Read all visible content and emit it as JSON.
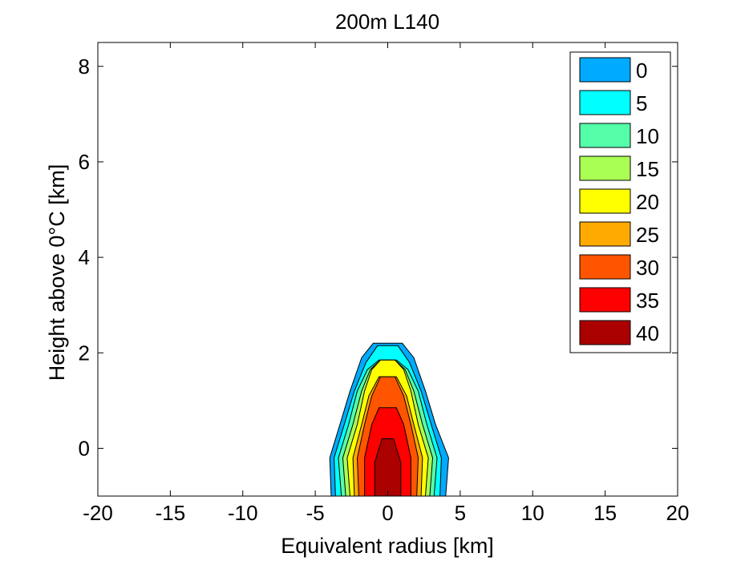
{
  "chart_data": {
    "type": "contour",
    "title": "200m L140",
    "xlabel": "Equivalent radius [km]",
    "ylabel": "Height above 0°C [km]",
    "xlim": [
      -20,
      20
    ],
    "ylim": [
      -1,
      8.5
    ],
    "xticks": [
      -20,
      -15,
      -10,
      -5,
      0,
      5,
      10,
      15,
      20
    ],
    "xtick_labels": [
      "-20",
      "-15",
      "-10",
      "-5",
      "0",
      "5",
      "10",
      "15",
      "20"
    ],
    "yticks": [
      0,
      2,
      4,
      6,
      8
    ],
    "ytick_labels": [
      "0",
      "2",
      "4",
      "6",
      "8"
    ],
    "grid": false,
    "legend_position": "top-right",
    "levels": [
      {
        "label": "0",
        "value": 0,
        "color": "#00aaff",
        "top": 2.2,
        "profile": [
          [
            -3.9,
            -1
          ],
          [
            -4.0,
            -0.2
          ],
          [
            -3.3,
            0.5
          ],
          [
            -2.6,
            1.2
          ],
          [
            -1.8,
            1.9
          ],
          [
            -1.0,
            2.2
          ],
          [
            1.0,
            2.2
          ],
          [
            1.8,
            1.9
          ],
          [
            2.6,
            1.2
          ],
          [
            3.3,
            0.5
          ],
          [
            4.2,
            -0.2
          ],
          [
            4.0,
            -1
          ]
        ]
      },
      {
        "label": "5",
        "value": 5,
        "color": "#00ffff",
        "top": 2.15,
        "profile": [
          [
            -3.6,
            -1
          ],
          [
            -3.7,
            -0.2
          ],
          [
            -3.0,
            0.5
          ],
          [
            -2.3,
            1.2
          ],
          [
            -1.5,
            1.8
          ],
          [
            -0.7,
            2.15
          ],
          [
            0.7,
            2.15
          ],
          [
            1.5,
            1.8
          ],
          [
            2.3,
            1.2
          ],
          [
            3.0,
            0.5
          ],
          [
            3.7,
            -0.2
          ],
          [
            3.6,
            -1
          ]
        ]
      },
      {
        "label": "10",
        "value": 10,
        "color": "#55ffaa",
        "top": 1.85,
        "profile": [
          [
            -3.2,
            -1
          ],
          [
            -3.4,
            -0.2
          ],
          [
            -2.7,
            0.5
          ],
          [
            -2.1,
            1.2
          ],
          [
            -1.4,
            1.65
          ],
          [
            -0.6,
            1.85
          ],
          [
            0.6,
            1.85
          ],
          [
            1.4,
            1.65
          ],
          [
            2.1,
            1.2
          ],
          [
            2.7,
            0.5
          ],
          [
            3.4,
            -0.2
          ],
          [
            3.2,
            -1
          ]
        ]
      },
      {
        "label": "15",
        "value": 15,
        "color": "#aaff55",
        "top": 1.85,
        "profile": [
          [
            -2.9,
            -1
          ],
          [
            -3.1,
            -0.2
          ],
          [
            -2.4,
            0.5
          ],
          [
            -1.8,
            1.2
          ],
          [
            -1.2,
            1.65
          ],
          [
            -0.5,
            1.85
          ],
          [
            0.5,
            1.85
          ],
          [
            1.2,
            1.65
          ],
          [
            1.8,
            1.2
          ],
          [
            2.4,
            0.5
          ],
          [
            3.1,
            -0.2
          ],
          [
            2.9,
            -1
          ]
        ]
      },
      {
        "label": "20",
        "value": 20,
        "color": "#ffff00",
        "top": 1.85,
        "profile": [
          [
            -2.6,
            -1
          ],
          [
            -2.8,
            -0.2
          ],
          [
            -2.1,
            0.5
          ],
          [
            -1.6,
            1.2
          ],
          [
            -1.1,
            1.65
          ],
          [
            -0.5,
            1.85
          ],
          [
            0.5,
            1.85
          ],
          [
            1.1,
            1.65
          ],
          [
            1.6,
            1.2
          ],
          [
            2.1,
            0.5
          ],
          [
            2.8,
            -0.2
          ],
          [
            2.6,
            -1
          ]
        ]
      },
      {
        "label": "25",
        "value": 25,
        "color": "#ffaa00",
        "top": 1.5,
        "profile": [
          [
            -2.3,
            -1
          ],
          [
            -2.4,
            -0.2
          ],
          [
            -1.8,
            0.5
          ],
          [
            -1.3,
            1.1
          ],
          [
            -0.6,
            1.5
          ],
          [
            0.6,
            1.5
          ],
          [
            1.3,
            1.1
          ],
          [
            1.8,
            0.5
          ],
          [
            2.4,
            -0.2
          ],
          [
            2.3,
            -1
          ]
        ]
      },
      {
        "label": "30",
        "value": 30,
        "color": "#ff5500",
        "top": 1.5,
        "profile": [
          [
            -2.0,
            -1
          ],
          [
            -2.1,
            -0.2
          ],
          [
            -1.6,
            0.5
          ],
          [
            -1.1,
            1.1
          ],
          [
            -0.5,
            1.5
          ],
          [
            0.5,
            1.5
          ],
          [
            1.1,
            1.1
          ],
          [
            1.6,
            0.5
          ],
          [
            2.1,
            -0.2
          ],
          [
            2.0,
            -1
          ]
        ]
      },
      {
        "label": "35",
        "value": 35,
        "color": "#ff0000",
        "top": 0.85,
        "profile": [
          [
            -1.6,
            -1
          ],
          [
            -1.6,
            -0.2
          ],
          [
            -1.1,
            0.5
          ],
          [
            -0.6,
            0.85
          ],
          [
            0.6,
            0.85
          ],
          [
            1.1,
            0.5
          ],
          [
            1.6,
            -0.2
          ],
          [
            1.6,
            -1
          ]
        ]
      },
      {
        "label": "40",
        "value": 40,
        "color": "#aa0000",
        "top": 0.2,
        "profile": [
          [
            -0.9,
            -1
          ],
          [
            -0.9,
            -0.3
          ],
          [
            -0.4,
            0.2
          ],
          [
            0.4,
            0.2
          ],
          [
            0.9,
            -0.3
          ],
          [
            0.9,
            -1
          ]
        ]
      }
    ]
  }
}
